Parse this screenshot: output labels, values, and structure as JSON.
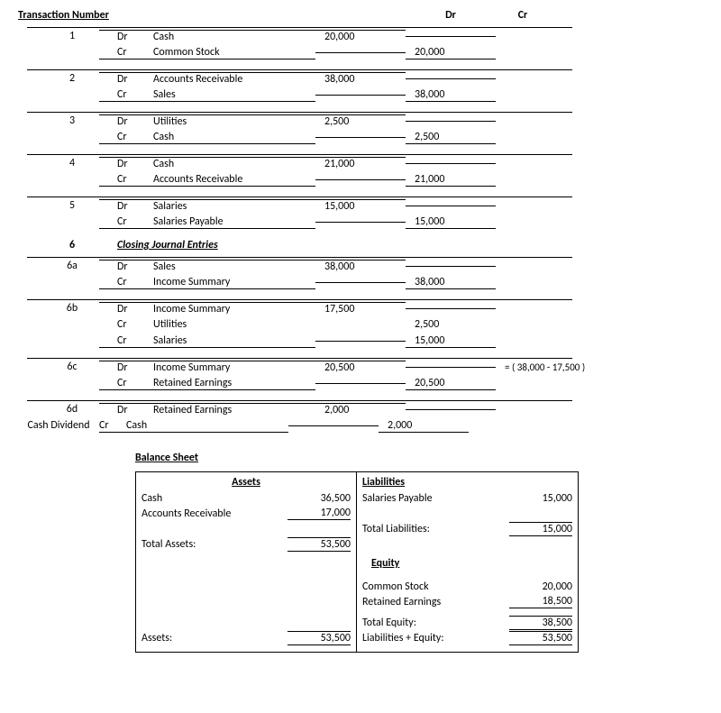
{
  "headers": {
    "transaction_number": "Transaction Number",
    "dr": "Dr",
    "cr": "Cr"
  },
  "closing_section": {
    "num": "6",
    "title": "Closing Journal Entries"
  },
  "entries": [
    {
      "num": "1",
      "rows": [
        {
          "side": "Dr",
          "account": "Cash",
          "dr": "20,000",
          "cr": ""
        },
        {
          "side": "Cr",
          "account": "Common Stock",
          "dr": "",
          "cr": "20,000"
        }
      ]
    },
    {
      "num": "2",
      "rows": [
        {
          "side": "Dr",
          "account": "Accounts Receivable",
          "dr": "38,000",
          "cr": ""
        },
        {
          "side": "Cr",
          "account": "Sales",
          "dr": "",
          "cr": "38,000"
        }
      ]
    },
    {
      "num": "3",
      "rows": [
        {
          "side": "Dr",
          "account": "Utilities",
          "dr": "2,500",
          "cr": ""
        },
        {
          "side": "Cr",
          "account": "Cash",
          "dr": "",
          "cr": "2,500"
        }
      ]
    },
    {
      "num": "4",
      "rows": [
        {
          "side": "Dr",
          "account": "Cash",
          "dr": "21,000",
          "cr": ""
        },
        {
          "side": "Cr",
          "account": "Accounts Receivable",
          "dr": "",
          "cr": "21,000"
        }
      ]
    },
    {
      "num": "5",
      "rows": [
        {
          "side": "Dr",
          "account": "Salaries",
          "dr": "15,000",
          "cr": ""
        },
        {
          "side": "Cr",
          "account": "Salaries Payable",
          "dr": "",
          "cr": "15,000"
        }
      ]
    },
    {
      "num": "6a",
      "rows": [
        {
          "side": "Dr",
          "account": "Sales",
          "dr": "38,000",
          "cr": ""
        },
        {
          "side": "Cr",
          "account": "Income Summary",
          "dr": "",
          "cr": "38,000"
        }
      ]
    },
    {
      "num": "6b",
      "rows": [
        {
          "side": "Dr",
          "account": "Income Summary",
          "dr": "17,500",
          "cr": ""
        },
        {
          "side": "Cr",
          "account": "Utilities",
          "dr": "",
          "cr": "2,500"
        },
        {
          "side": "Cr",
          "account": "Salaries",
          "dr": "",
          "cr": "15,000"
        }
      ]
    },
    {
      "num": "6c",
      "note": "= ( 38,000 - 17,500 )",
      "rows": [
        {
          "side": "Dr",
          "account": "Income Summary",
          "dr": "20,500",
          "cr": ""
        },
        {
          "side": "Cr",
          "account": "Retained Earnings",
          "dr": "",
          "cr": "20,500"
        }
      ]
    },
    {
      "num": "6d",
      "sublabel": "Cash Dividend",
      "rows": [
        {
          "side": "Dr",
          "account": "Retained Earnings",
          "dr": "2,000",
          "cr": ""
        },
        {
          "side": "Cr",
          "account": "Cash",
          "dr": "",
          "cr": "2,000"
        }
      ]
    }
  ],
  "balance_sheet": {
    "title": "Balance Sheet",
    "assets": {
      "header": "Assets",
      "lines": [
        {
          "label": "Cash",
          "value": "36,500"
        },
        {
          "label": "Accounts Receivable",
          "value": "17,000"
        }
      ],
      "total_label": "Total Assets:",
      "total_value": "53,500",
      "footer_label": "Assets:",
      "footer_value": "53,500"
    },
    "liabilities": {
      "header": "Liabilities",
      "lines": [
        {
          "label": "Salaries Payable",
          "value": "15,000"
        }
      ],
      "total_label": "Total Liabilities:",
      "total_value": "15,000"
    },
    "equity": {
      "header": "Equity",
      "lines": [
        {
          "label": "Common Stock",
          "value": "20,000"
        },
        {
          "label": "Retained Earnings",
          "value": "18,500"
        }
      ],
      "total_label": "Total Equity:",
      "total_value": "38,500",
      "footer_label": "Liabilities + Equity:",
      "footer_value": "53,500"
    }
  }
}
